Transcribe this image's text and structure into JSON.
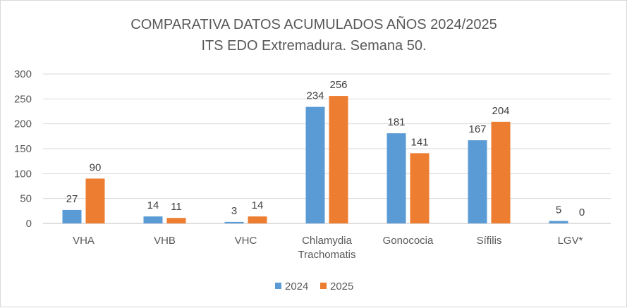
{
  "chart_data": {
    "type": "bar",
    "title": "COMPARATIVA DATOS ACUMULADOS AÑOS 2024/2025",
    "subtitle": "ITS EDO Extremadura. Semana 50.",
    "categories": [
      [
        "VHA"
      ],
      [
        "VHB"
      ],
      [
        "VHC"
      ],
      [
        "Chlamydia",
        "Trachomatis"
      ],
      [
        "Gonococia"
      ],
      [
        "Sífilis"
      ],
      [
        "LGV*"
      ]
    ],
    "series": [
      {
        "name": "2024",
        "color": "#5B9BD5",
        "values": [
          27,
          14,
          3,
          234,
          181,
          167,
          5
        ]
      },
      {
        "name": "2025",
        "color": "#ED7D31",
        "values": [
          90,
          11,
          14,
          256,
          141,
          204,
          0
        ]
      }
    ],
    "ylim": [
      0,
      300
    ],
    "yticks": [
      0,
      50,
      100,
      150,
      200,
      250,
      300
    ],
    "grid": true,
    "legend_position": "bottom",
    "data_labels": true
  }
}
